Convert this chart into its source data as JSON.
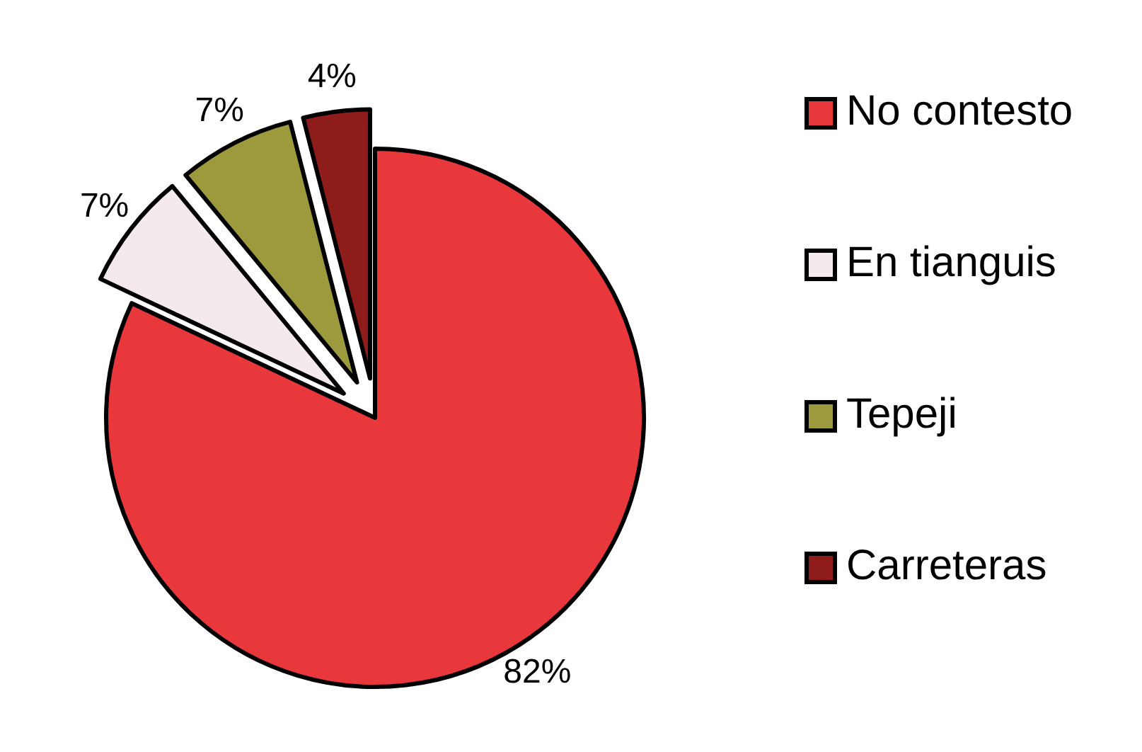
{
  "chart_data": {
    "type": "pie",
    "categories": [
      "No contesto",
      "En tianguis",
      "Tepeji",
      "Carreteras"
    ],
    "values": [
      82,
      7,
      7,
      4
    ],
    "colors": [
      "#e8383c",
      "#f3e9ee",
      "#9c9a3c",
      "#8e1c1a"
    ],
    "value_labels": [
      "82%",
      "7%",
      "7%",
      "4%"
    ],
    "legend": "right"
  }
}
